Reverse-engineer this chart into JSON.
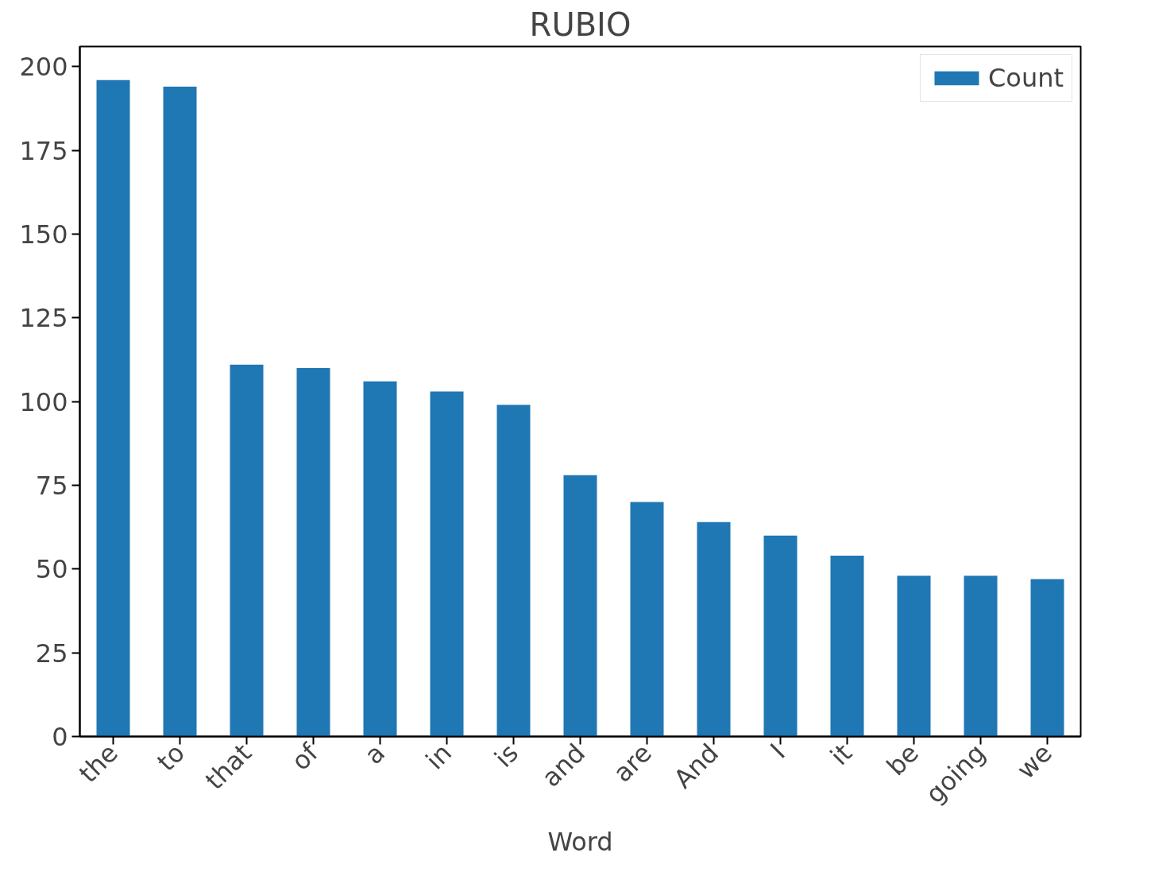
{
  "chart_data": {
    "type": "bar",
    "title": "RUBIO",
    "xlabel": "Word",
    "categories": [
      "the",
      "to",
      "that",
      "of",
      "a",
      "in",
      "is",
      "and",
      "are",
      "And",
      "I",
      "it",
      "be",
      "going",
      "we"
    ],
    "series": [
      {
        "name": "Count",
        "color": "#1f77b4",
        "values": [
          196,
          194,
          111,
          110,
          106,
          103,
          99,
          78,
          70,
          64,
          60,
          54,
          48,
          48,
          47
        ]
      }
    ],
    "ylim": [
      0,
      206
    ],
    "yticks": [
      0,
      25,
      50,
      75,
      100,
      125,
      150,
      175,
      200
    ],
    "grid": false,
    "legend": "top right"
  }
}
